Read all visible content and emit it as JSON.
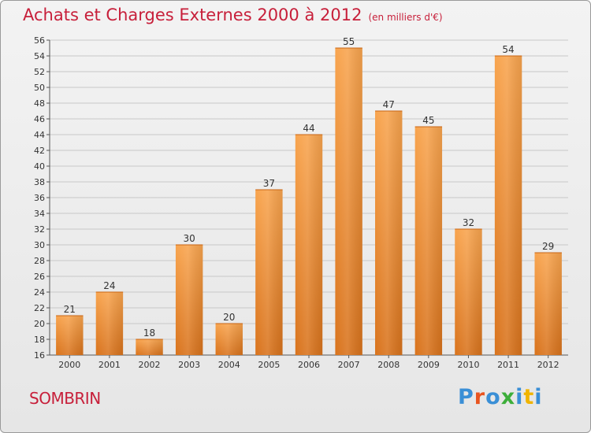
{
  "header": {
    "title": "Achats et Charges Externes 2000 à 2012",
    "unit": "(en milliers d'€)"
  },
  "footer": {
    "town": "SOMBRIN",
    "logo": {
      "text": "Proxiti",
      "colors": [
        "#3a8fd6",
        "#e8541f",
        "#3a8fd6",
        "#3dae3a",
        "#3a8fd6",
        "#f0b400",
        "#3a8fd6"
      ]
    }
  },
  "colors": {
    "bar_top": "#f8a44e",
    "bar_bottom": "#d9731c",
    "title": "#c71f3a",
    "grid": "#c8c8c8"
  },
  "chart_data": {
    "type": "bar",
    "title": "Achats et Charges Externes 2000 à 2012",
    "subtitle": "(en milliers d'€)",
    "xlabel": "",
    "ylabel": "",
    "categories": [
      "2000",
      "2001",
      "2002",
      "2003",
      "2004",
      "2005",
      "2006",
      "2007",
      "2008",
      "2009",
      "2010",
      "2011",
      "2012"
    ],
    "values": [
      21,
      24,
      18,
      30,
      20,
      37,
      44,
      55,
      47,
      45,
      32,
      54,
      29
    ],
    "ylim": [
      16,
      56
    ],
    "ytick_step": 2,
    "grid": true,
    "data_labels": true
  }
}
